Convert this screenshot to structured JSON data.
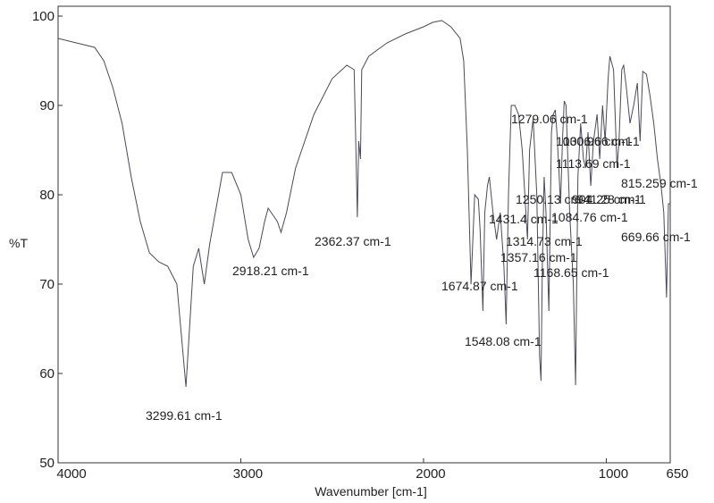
{
  "chart_data": {
    "type": "line",
    "x_label": "Wavenumber [cm-1]",
    "y_label": "%T",
    "xlim": [
      4000,
      650
    ],
    "ylim": [
      50,
      100
    ],
    "xticks": [
      4000,
      3000,
      2000,
      1000,
      650
    ],
    "yticks": [
      50,
      60,
      70,
      80,
      90,
      100
    ],
    "series": [
      {
        "color": "#4a4a5a",
        "x": [
          4000,
          3900,
          3800,
          3750,
          3700,
          3650,
          3600,
          3550,
          3500,
          3450,
          3400,
          3350,
          3300,
          3260,
          3230,
          3200,
          3170,
          3100,
          3050,
          3000,
          2960,
          2930,
          2900,
          2870,
          2850,
          2800,
          2780,
          2750,
          2700,
          2600,
          2500,
          2420,
          2380,
          2370,
          2362,
          2355,
          2345,
          2338,
          2300,
          2200,
          2100,
          2000,
          1950,
          1900,
          1850,
          1800,
          1780,
          1760,
          1740,
          1720,
          1700,
          1690,
          1675,
          1665,
          1650,
          1640,
          1620,
          1600,
          1580,
          1560,
          1548,
          1535,
          1520,
          1500,
          1480,
          1460,
          1440,
          1431,
          1420,
          1400,
          1380,
          1365,
          1357,
          1350,
          1340,
          1330,
          1314,
          1300,
          1290,
          1279,
          1270,
          1260,
          1250,
          1240,
          1230,
          1220,
          1200,
          1180,
          1168,
          1155,
          1140,
          1125,
          1113,
          1100,
          1085,
          1070,
          1050,
          1036,
          1020,
          1006,
          990,
          980,
          960,
          941,
          930,
          915,
          905,
          890,
          870,
          850,
          830,
          815,
          800,
          780,
          760,
          740,
          720,
          700,
          685,
          670,
          660,
          650
        ],
        "values": [
          97.5,
          97,
          96.5,
          95,
          92,
          88,
          82,
          77,
          73.5,
          72.5,
          72,
          70,
          58.5,
          72,
          74,
          70,
          74.5,
          82.5,
          82.5,
          80,
          75,
          73,
          74,
          77,
          78.5,
          77,
          75.8,
          78,
          83,
          89,
          93,
          94.5,
          94,
          85,
          77.5,
          86,
          84,
          94,
          95.5,
          97,
          98,
          98.8,
          99.3,
          99.5,
          98.8,
          97.5,
          95,
          85,
          70,
          80,
          79.5,
          76,
          67,
          78,
          81,
          82,
          78,
          75,
          78,
          72,
          65.5,
          80,
          90,
          90,
          89,
          85,
          78,
          75,
          85,
          88.5,
          80,
          62,
          59.2,
          72,
          82,
          78,
          67,
          87,
          89,
          89.5,
          87,
          83,
          79,
          86,
          90.5,
          90,
          78,
          70,
          58.7,
          82,
          88,
          84,
          83,
          87,
          81,
          86,
          89,
          84,
          90,
          86,
          93,
          95.5,
          94,
          83,
          86,
          94,
          94.5,
          92,
          88,
          90,
          92.5,
          86,
          93.8,
          93.5,
          91,
          88,
          84,
          81,
          78,
          68.5,
          79,
          79
        ]
      }
    ],
    "annotations": [
      "3299.61 cm-1",
      "2918.21 cm-1",
      "2362.37 cm-1",
      "1674.87 cm-1",
      "1548.08 cm-1",
      "1431.4 cm-1",
      "1357.16 cm-1",
      "1314.73 cm-1",
      "1250.13 cm-1",
      "1279.06 cm-1",
      "1168.65 cm-1",
      "1113.69 cm-1",
      "1084.76 cm-1",
      "1030.96 cm-1",
      "1006.66 cm-1",
      "941.28 cm-1",
      "904.25 cm-1",
      "815.259 cm-1",
      "669.66 cm-1"
    ]
  }
}
